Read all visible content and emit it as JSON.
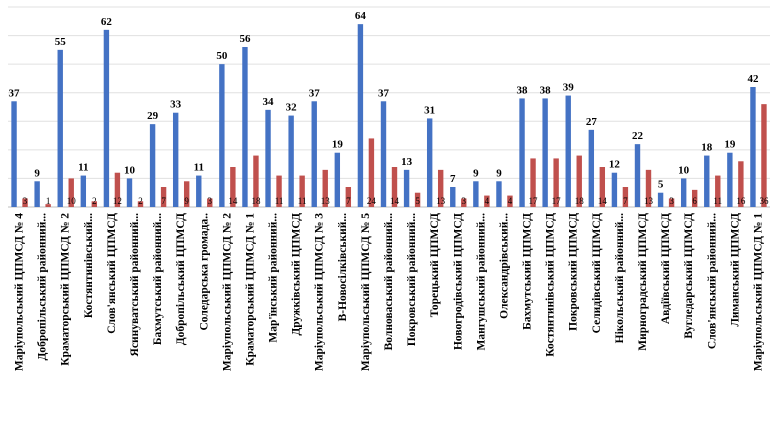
{
  "chart_data": {
    "type": "bar",
    "categories": [
      "Маріупольський ЦПМСД № 4",
      "Добропільський районний...",
      "Краматорський ЦПМСД № 2",
      "Костянтинівський...",
      "Слов'янський ЦПМСД",
      "Ясинуватський районний...",
      "Бахмутський районний...",
      "Добропільський ЦПМСД",
      "Соледарська громада..",
      "Маріупольський ЦПМСД № 2",
      "Краматорський ЦПМСД № 1",
      "Мар'їнський районний...",
      "Дружківський ЦПМСД",
      "Маріупольський ЦПМСД № 3",
      "В-Новосілківський...",
      "Маріупольський ЦПМСД № 5",
      "Волноваський районний...",
      "Покровський районний...",
      "Торецький ЦПМСД",
      "Новогродівський ЦПМСД",
      "Мангушський районний...",
      "Олександрівський...",
      "Бахмутський ЦПМСД",
      "Костянтинівський ЦПМСД",
      "Покровський ЦПМСД",
      "Селидівський ЦПМСД",
      "Нікольський районний...",
      "Мирноградський ЦПМСД",
      "Авдіївський ЦПМСД",
      "Вугледарський ЦПМСД",
      "Слов'янський районний...",
      "Лиманський ЦПМСД",
      "Маріупольський ЦПМСД № 1"
    ],
    "series": [
      {
        "values": [
          37,
          9,
          55,
          11,
          62,
          10,
          29,
          33,
          11,
          50,
          56,
          34,
          32,
          37,
          19,
          64,
          37,
          13,
          31,
          7,
          9,
          9,
          38,
          38,
          39,
          27,
          12,
          22,
          5,
          10,
          18,
          19,
          42
        ],
        "color": "#4472C4"
      },
      {
        "values": [
          3,
          1,
          10,
          2,
          12,
          2,
          7,
          9,
          3,
          14,
          18,
          11,
          11,
          13,
          7,
          24,
          14,
          5,
          13,
          3,
          4,
          4,
          17,
          17,
          18,
          14,
          7,
          13,
          3,
          6,
          11,
          16,
          36
        ],
        "color": "#C0504D"
      }
    ],
    "ylim": [
      0,
      70
    ],
    "grid": true,
    "legend": "none"
  }
}
